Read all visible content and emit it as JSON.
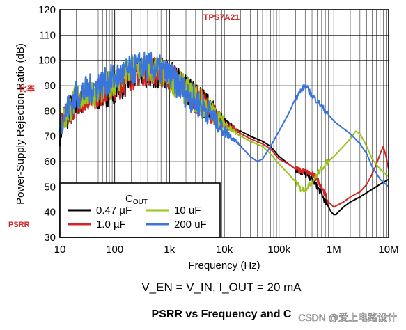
{
  "chart_data": {
    "type": "line",
    "title": "PSRR vs Frequency and C",
    "conditions": "V_EN = V_IN, I_OUT = 20 mA",
    "annotation": "TPS7A21",
    "side_labels": [
      "比率",
      "PSRR"
    ],
    "watermark": "CSDN @爱上电路设计",
    "xlabel": "Frequency (Hz)",
    "ylabel": "Power-Supply Rejection Ratio (dB)",
    "xscale": "log",
    "xlim": [
      10,
      10000000
    ],
    "ylim": [
      30,
      120
    ],
    "x_tick_labels": [
      "10",
      "100",
      "1k",
      "10k",
      "100k",
      "1M",
      "10M"
    ],
    "y_tick_labels": [
      "30",
      "40",
      "50",
      "60",
      "70",
      "80",
      "90",
      "100",
      "110",
      "120"
    ],
    "grid": true,
    "legend": {
      "title": "C",
      "title_sub": "OUT",
      "placement": "bottom-left"
    },
    "series": [
      {
        "name": "0.47 µF",
        "color": "#000000",
        "x": [
          10,
          15,
          20,
          30,
          50,
          80,
          100,
          150,
          200,
          300,
          500,
          700,
          1000,
          1500,
          2000,
          3000,
          5000,
          7000,
          10000,
          15000,
          20000,
          30000,
          50000,
          70000,
          100000,
          150000,
          200000,
          300000,
          400000,
          500000,
          600000,
          700000,
          800000,
          900000,
          1000000,
          1100000,
          1200000,
          1500000,
          2000000,
          3000000,
          5000000,
          7000000,
          10000000
        ],
        "y": [
          72,
          80,
          84,
          85,
          86,
          88,
          89,
          91,
          93,
          95,
          95,
          95,
          94,
          91,
          88,
          86,
          82,
          79,
          75,
          73,
          72,
          70,
          68,
          66,
          62,
          59,
          57,
          55,
          53,
          50,
          47,
          44,
          42,
          40,
          39,
          39,
          40,
          42,
          44,
          46,
          49,
          51,
          53
        ]
      },
      {
        "name": "1.0 µF",
        "color": "#d42424",
        "x": [
          10,
          15,
          20,
          30,
          50,
          80,
          100,
          150,
          200,
          300,
          500,
          700,
          1000,
          1500,
          2000,
          3000,
          5000,
          7000,
          10000,
          15000,
          20000,
          30000,
          50000,
          70000,
          100000,
          150000,
          200000,
          300000,
          400000,
          500000,
          600000,
          700000,
          800000,
          1000000,
          1500000,
          2000000,
          3000000,
          4000000,
          5000000,
          6000000,
          7000000,
          8000000,
          9000000,
          10000000
        ],
        "y": [
          73,
          80,
          84,
          86,
          87,
          89,
          90,
          92,
          94,
          96,
          96,
          95,
          94,
          91,
          88,
          85,
          81,
          78,
          75,
          73,
          71,
          69,
          67,
          65,
          61,
          59,
          57,
          56,
          55,
          53,
          50,
          47,
          44,
          42,
          44,
          46,
          48,
          51,
          55,
          59,
          63,
          66,
          62,
          57
        ]
      },
      {
        "name": "10 uF",
        "color": "#9ac41c",
        "x": [
          10,
          15,
          20,
          30,
          50,
          80,
          100,
          150,
          200,
          300,
          500,
          700,
          1000,
          1500,
          2000,
          3000,
          5000,
          7000,
          10000,
          15000,
          20000,
          30000,
          50000,
          70000,
          100000,
          150000,
          200000,
          250000,
          300000,
          400000,
          500000,
          700000,
          1000000,
          1500000,
          2000000,
          2500000,
          3000000,
          4000000,
          5000000,
          7000000,
          10000000
        ],
        "y": [
          74,
          81,
          85,
          87,
          88,
          90,
          92,
          94,
          96,
          97,
          96,
          95,
          93,
          90,
          88,
          85,
          81,
          78,
          75,
          72,
          70,
          68,
          66,
          63,
          59,
          55,
          52,
          49,
          49,
          52,
          55,
          59,
          62,
          66,
          69,
          72,
          71,
          66,
          61,
          57,
          54
        ]
      },
      {
        "name": "200 uF",
        "color": "#3a74dc",
        "x": [
          10,
          15,
          20,
          30,
          50,
          80,
          100,
          150,
          200,
          300,
          500,
          700,
          1000,
          1500,
          2000,
          3000,
          5000,
          7000,
          10000,
          15000,
          20000,
          30000,
          40000,
          50000,
          70000,
          100000,
          150000,
          200000,
          250000,
          300000,
          350000,
          400000,
          500000,
          700000,
          1000000,
          1500000,
          2000000,
          3000000,
          4000000,
          5000000,
          7000000,
          10000000
        ],
        "y": [
          75,
          82,
          86,
          88,
          90,
          92,
          93,
          95,
          96,
          98,
          97,
          96,
          94,
          90,
          87,
          84,
          80,
          76,
          72,
          69,
          66,
          62,
          60,
          61,
          66,
          72,
          79,
          85,
          88,
          90,
          88,
          86,
          84,
          80,
          76,
          73,
          71,
          67,
          63,
          58,
          53,
          50
        ]
      }
    ]
  }
}
